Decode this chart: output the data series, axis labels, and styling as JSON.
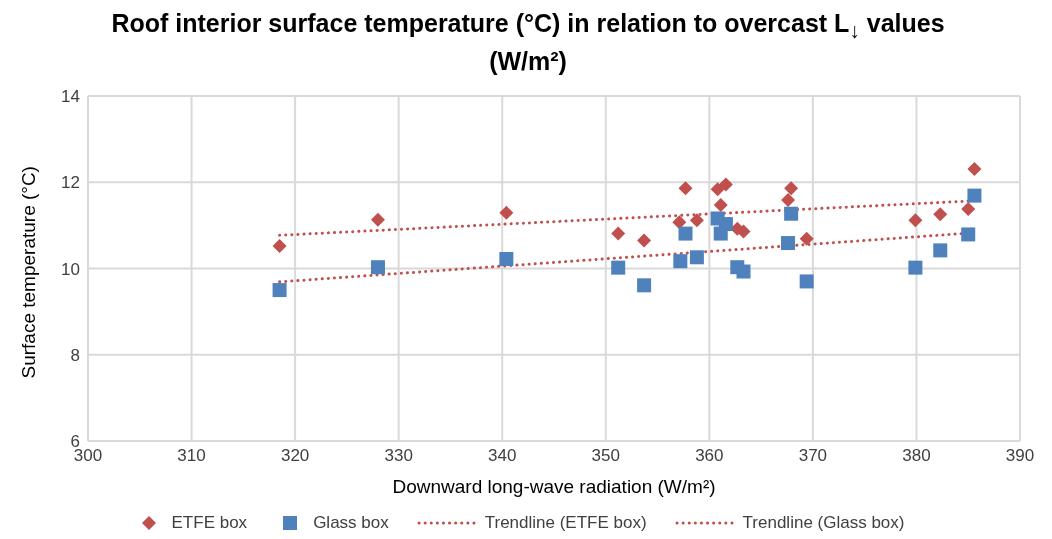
{
  "chart_data": {
    "type": "scatter",
    "title": "Roof interior surface temperature (°C) in relation to overcast L$_{↓}$ values (W/m²)",
    "xlabel": "Downward long-wave radiation (W/m²)",
    "ylabel": "Surface temperature (°C)",
    "xlim": [
      300,
      390
    ],
    "xticks": [
      300,
      310,
      320,
      330,
      340,
      350,
      360,
      370,
      380,
      390
    ],
    "ylim": [
      6,
      14
    ],
    "yticks": [
      6,
      8,
      10,
      12,
      14
    ],
    "grid": true,
    "legend": "bottom",
    "series": [
      {
        "name": "ETFE box",
        "marker": "diamond",
        "color": "#c0504d",
        "x": [
          318.5,
          328.0,
          340.4,
          351.2,
          353.7,
          357.1,
          357.7,
          358.8,
          360.8,
          361.1,
          361.6,
          362.7,
          363.3,
          367.6,
          367.9,
          369.4,
          379.9,
          382.3,
          385.0,
          385.6
        ],
        "values": [
          10.52,
          11.13,
          11.29,
          10.81,
          10.65,
          11.07,
          11.86,
          11.12,
          11.84,
          11.47,
          11.95,
          10.92,
          10.86,
          11.59,
          11.86,
          10.69,
          11.12,
          11.26,
          11.38,
          12.31
        ]
      },
      {
        "name": "Glass box",
        "marker": "square",
        "color": "#4f81bd",
        "x": [
          318.5,
          328.0,
          340.4,
          351.2,
          353.7,
          357.2,
          357.7,
          358.8,
          360.8,
          361.1,
          361.6,
          362.7,
          363.3,
          367.6,
          367.9,
          369.4,
          379.9,
          382.3,
          385.0,
          385.6
        ],
        "values": [
          9.5,
          10.03,
          10.22,
          10.02,
          9.61,
          10.17,
          10.81,
          10.26,
          11.16,
          10.81,
          11.03,
          10.03,
          9.93,
          10.59,
          11.27,
          9.7,
          10.02,
          10.42,
          10.79,
          11.69
        ]
      },
      {
        "name": "Trendline (ETFE box)",
        "type": "line",
        "marker": "none",
        "line_style": "dotted",
        "color": "#c0504d",
        "x": [
          318.5,
          385.6
        ],
        "values": [
          10.77,
          11.57
        ]
      },
      {
        "name": "Trendline (Glass box)",
        "type": "line",
        "marker": "none",
        "line_style": "dotted",
        "color": "#c0504d",
        "x": [
          318.5,
          385.6
        ],
        "values": [
          9.69,
          10.83
        ]
      }
    ]
  }
}
